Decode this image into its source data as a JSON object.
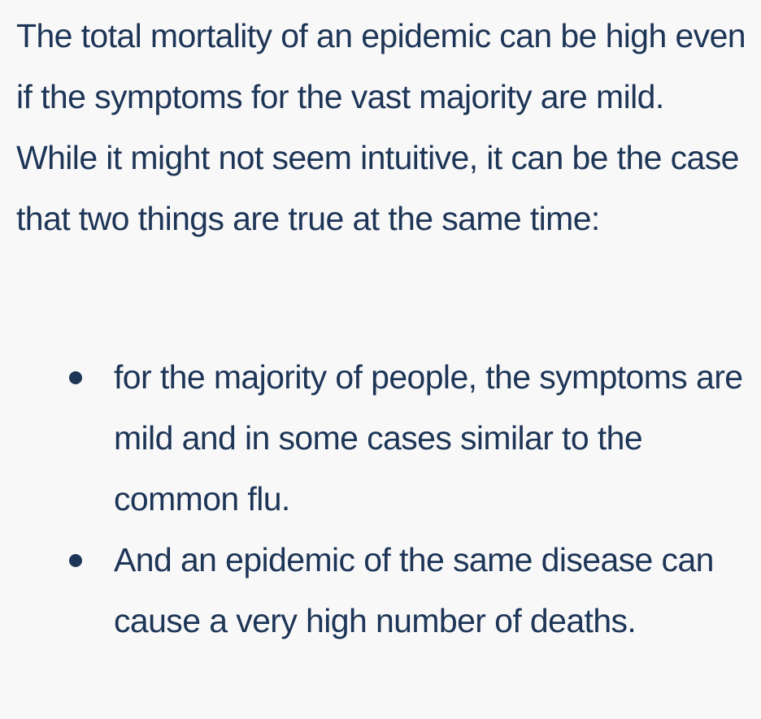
{
  "article": {
    "paragraph": "The total mortality of an epidemic can be high even if the symptoms for the vast majority are mild. While it might not seem intuitive, it can be the case that two things are true at the same time:",
    "list_items": [
      "for the majority of people, the symptoms are mild and in some cases similar to the common flu.",
      "And an epidemic of the same disease can cause a very high number of deaths."
    ]
  },
  "colors": {
    "text": "#1d3557",
    "background": "#f8f8f8"
  }
}
